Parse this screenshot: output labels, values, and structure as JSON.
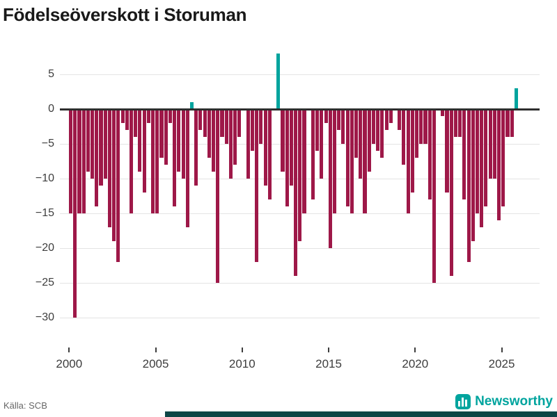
{
  "title": "Födelseöverskott i Storuman",
  "source": "Källa: SCB",
  "brand": {
    "name": "Newsworthy",
    "icon": "bar-chart-logo"
  },
  "colors": {
    "negative_bar": "#9e1848",
    "positive_bar": "#00a49e",
    "zero_line": "#2e2e2e",
    "grid": "#e4e4e4",
    "brand_teal": "#00a49e",
    "footer_band": "#0e4646",
    "title_text": "#191919",
    "tick_text": "#3d3d3d",
    "source_text": "#666666"
  },
  "chart_data": {
    "type": "bar",
    "title": "Födelseöverskott i Storuman",
    "xlabel": "",
    "ylabel": "",
    "x_unit": "quarter",
    "start_year": 2000,
    "quarters_per_year": 4,
    "start": "2000Q1",
    "end": "2025Q4",
    "ylim": [
      -32,
      9
    ],
    "yticks": [
      5,
      0,
      -5,
      -10,
      -15,
      -20,
      -25,
      -30
    ],
    "xticks": [
      2000,
      2005,
      2010,
      2015,
      2020,
      2025
    ],
    "grid": "horizontal-only",
    "legend": "none",
    "positive_quarters": [
      "2007Q1",
      "2012Q1",
      "2025Q4"
    ],
    "values": [
      -15,
      -30,
      -15,
      -15,
      -9,
      -10,
      -14,
      -11,
      -10,
      -17,
      -19,
      -22,
      -2,
      -3,
      -15,
      -4,
      -9,
      -12,
      -2,
      -15,
      -15,
      -7,
      -8,
      -2,
      -14,
      -9,
      -10,
      -17,
      1,
      -11,
      -3,
      -4,
      -7,
      -9,
      -25,
      -4,
      -5,
      -10,
      -8,
      -4,
      0,
      -10,
      -6,
      -22,
      -5,
      -11,
      -13,
      0,
      8,
      -9,
      -14,
      -11,
      -24,
      -19,
      -15,
      0,
      -13,
      -6,
      -10,
      -2,
      -20,
      -15,
      -3,
      -5,
      -14,
      -15,
      -7,
      -10,
      -15,
      -9,
      -5,
      -6,
      -7,
      -3,
      -2,
      0,
      -3,
      -8,
      -15,
      -12,
      -7,
      -5,
      -5,
      -13,
      -25,
      0,
      -1,
      -12,
      -24,
      -4,
      -4,
      -13,
      -22,
      -19,
      -15,
      -17,
      -14,
      -10,
      -10,
      -16,
      -14,
      -4,
      -4,
      3
    ]
  }
}
